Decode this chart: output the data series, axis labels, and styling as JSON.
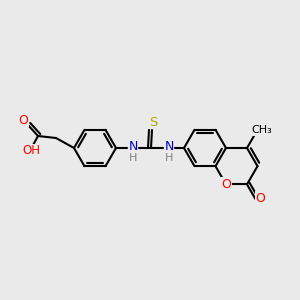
{
  "background_color": "#eaeaea",
  "bond_color": "#000000",
  "atom_colors": {
    "O": "#ff0000",
    "N": "#0000cc",
    "S": "#aaaa00",
    "H": "#808080",
    "C": "#000000"
  },
  "line_width": 1.5
}
